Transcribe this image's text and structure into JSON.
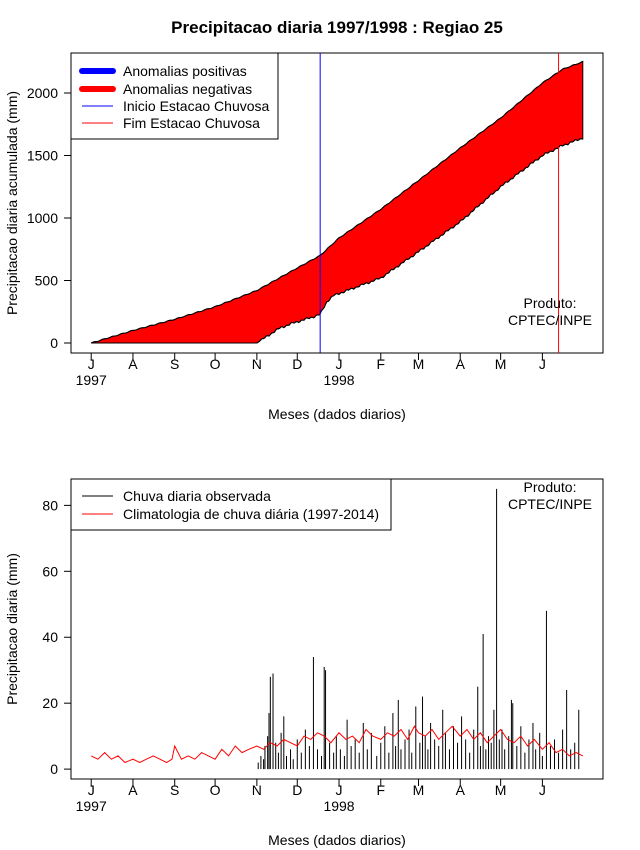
{
  "chart_data": [
    {
      "type": "area",
      "title": "Precipitacao diaria 1997/1998 : Regiao 25",
      "xlabel": "Meses (dados diarios)",
      "ylabel": "Precipitacao diaria acumulada (mm)",
      "ylim": [
        -80,
        2320
      ],
      "yticks": [
        0,
        500,
        1000,
        1500,
        2000
      ],
      "month_ticks": [
        {
          "label": "J",
          "day": 0
        },
        {
          "label": "A",
          "day": 31
        },
        {
          "label": "S",
          "day": 62
        },
        {
          "label": "O",
          "day": 92
        },
        {
          "label": "N",
          "day": 123
        },
        {
          "label": "D",
          "day": 153
        },
        {
          "label": "J",
          "day": 184
        },
        {
          "label": "F",
          "day": 215
        },
        {
          "label": "M",
          "day": 243
        },
        {
          "label": "A",
          "day": 274
        },
        {
          "label": "M",
          "day": 304
        },
        {
          "label": "J",
          "day": 335
        }
      ],
      "year_labels": [
        {
          "label": "1997",
          "day": 0
        },
        {
          "label": "1998",
          "day": 184
        }
      ],
      "xlim": [
        -15,
        380
      ],
      "inicio_day": 170,
      "fim_day": 347,
      "climatology_cumulative": {
        "days": [
          0,
          31,
          62,
          92,
          123,
          153,
          170,
          184,
          215,
          243,
          274,
          304,
          335,
          350,
          365
        ],
        "values": [
          0,
          100,
          190,
          290,
          420,
          600,
          700,
          840,
          1070,
          1300,
          1560,
          1800,
          2080,
          2190,
          2250
        ]
      },
      "observed_cumulative": {
        "days": [
          0,
          31,
          62,
          92,
          123,
          140,
          150,
          165,
          170,
          175,
          180,
          190,
          215,
          243,
          274,
          304,
          335,
          350,
          365
        ],
        "values": [
          0,
          0,
          0,
          0,
          0,
          120,
          160,
          210,
          230,
          330,
          380,
          420,
          520,
          730,
          970,
          1250,
          1500,
          1580,
          1640
        ]
      },
      "legend": [
        {
          "label": "Anomalias positivas",
          "color": "#0000ff",
          "style": "thick"
        },
        {
          "label": "Anomalias negativas",
          "color": "#ff0000",
          "style": "thick"
        },
        {
          "label": "Inicio Estacao Chuvosa",
          "color": "#0000ff",
          "style": "thin"
        },
        {
          "label": "Fim Estacao Chuvosa",
          "color": "#ff0000",
          "style": "thin"
        }
      ],
      "annotation": [
        "Produto:",
        "CPTEC/INPE"
      ],
      "colors": {
        "positive": "#0000ff",
        "negative": "#ff0000",
        "outline": "#000000"
      }
    },
    {
      "type": "bar",
      "xlabel": "Meses (dados diarios)",
      "ylabel": "Precipitacao diaria (mm)",
      "ylim": [
        -3,
        88
      ],
      "yticks": [
        0,
        20,
        40,
        60,
        80
      ],
      "xlim": [
        -15,
        380
      ],
      "month_ticks": [
        {
          "label": "J",
          "day": 0
        },
        {
          "label": "A",
          "day": 31
        },
        {
          "label": "S",
          "day": 62
        },
        {
          "label": "O",
          "day": 92
        },
        {
          "label": "N",
          "day": 123
        },
        {
          "label": "D",
          "day": 153
        },
        {
          "label": "J",
          "day": 184
        },
        {
          "label": "F",
          "day": 215
        },
        {
          "label": "M",
          "day": 243
        },
        {
          "label": "A",
          "day": 274
        },
        {
          "label": "M",
          "day": 304
        },
        {
          "label": "J",
          "day": 335
        }
      ],
      "year_labels": [
        {
          "label": "1997",
          "day": 0
        },
        {
          "label": "1998",
          "day": 184
        }
      ],
      "observed_daily": [
        {
          "day": 124,
          "value": 2
        },
        {
          "day": 126,
          "value": 4
        },
        {
          "day": 128,
          "value": 3
        },
        {
          "day": 129,
          "value": 7
        },
        {
          "day": 131,
          "value": 10
        },
        {
          "day": 132,
          "value": 17
        },
        {
          "day": 133,
          "value": 28
        },
        {
          "day": 135,
          "value": 29
        },
        {
          "day": 137,
          "value": 8
        },
        {
          "day": 139,
          "value": 5
        },
        {
          "day": 141,
          "value": 11
        },
        {
          "day": 143,
          "value": 16
        },
        {
          "day": 145,
          "value": 4
        },
        {
          "day": 148,
          "value": 6
        },
        {
          "day": 150,
          "value": 3
        },
        {
          "day": 153,
          "value": 9
        },
        {
          "day": 156,
          "value": 5
        },
        {
          "day": 159,
          "value": 12
        },
        {
          "day": 162,
          "value": 7
        },
        {
          "day": 165,
          "value": 34
        },
        {
          "day": 168,
          "value": 6
        },
        {
          "day": 171,
          "value": 4
        },
        {
          "day": 173,
          "value": 31
        },
        {
          "day": 174,
          "value": 30
        },
        {
          "day": 177,
          "value": 8
        },
        {
          "day": 180,
          "value": 5
        },
        {
          "day": 182,
          "value": 10
        },
        {
          "day": 185,
          "value": 6
        },
        {
          "day": 188,
          "value": 4
        },
        {
          "day": 190,
          "value": 15
        },
        {
          "day": 193,
          "value": 7
        },
        {
          "day": 196,
          "value": 9
        },
        {
          "day": 199,
          "value": 5
        },
        {
          "day": 202,
          "value": 14
        },
        {
          "day": 205,
          "value": 6
        },
        {
          "day": 208,
          "value": 11
        },
        {
          "day": 212,
          "value": 4
        },
        {
          "day": 215,
          "value": 8
        },
        {
          "day": 218,
          "value": 13
        },
        {
          "day": 221,
          "value": 5
        },
        {
          "day": 224,
          "value": 17
        },
        {
          "day": 226,
          "value": 7
        },
        {
          "day": 228,
          "value": 21
        },
        {
          "day": 230,
          "value": 6
        },
        {
          "day": 233,
          "value": 9
        },
        {
          "day": 236,
          "value": 12
        },
        {
          "day": 238,
          "value": 5
        },
        {
          "day": 241,
          "value": 19
        },
        {
          "day": 244,
          "value": 8
        },
        {
          "day": 246,
          "value": 22
        },
        {
          "day": 248,
          "value": 10
        },
        {
          "day": 250,
          "value": 6
        },
        {
          "day": 252,
          "value": 14
        },
        {
          "day": 255,
          "value": 9
        },
        {
          "day": 258,
          "value": 7
        },
        {
          "day": 261,
          "value": 18
        },
        {
          "day": 263,
          "value": 11
        },
        {
          "day": 266,
          "value": 6
        },
        {
          "day": 269,
          "value": 13
        },
        {
          "day": 272,
          "value": 8
        },
        {
          "day": 275,
          "value": 16
        },
        {
          "day": 278,
          "value": 9
        },
        {
          "day": 281,
          "value": 5
        },
        {
          "day": 284,
          "value": 12
        },
        {
          "day": 287,
          "value": 25
        },
        {
          "day": 289,
          "value": 7
        },
        {
          "day": 291,
          "value": 41
        },
        {
          "day": 293,
          "value": 6
        },
        {
          "day": 295,
          "value": 10
        },
        {
          "day": 297,
          "value": 8
        },
        {
          "day": 299,
          "value": 18
        },
        {
          "day": 301,
          "value": 85
        },
        {
          "day": 303,
          "value": 9
        },
        {
          "day": 305,
          "value": 12
        },
        {
          "day": 307,
          "value": 6
        },
        {
          "day": 310,
          "value": 10
        },
        {
          "day": 312,
          "value": 21
        },
        {
          "day": 313,
          "value": 20
        },
        {
          "day": 316,
          "value": 7
        },
        {
          "day": 319,
          "value": 13
        },
        {
          "day": 322,
          "value": 5
        },
        {
          "day": 325,
          "value": 9
        },
        {
          "day": 328,
          "value": 14
        },
        {
          "day": 330,
          "value": 6
        },
        {
          "day": 333,
          "value": 11
        },
        {
          "day": 335,
          "value": 4
        },
        {
          "day": 338,
          "value": 48
        },
        {
          "day": 341,
          "value": 7
        },
        {
          "day": 344,
          "value": 9
        },
        {
          "day": 347,
          "value": 5
        },
        {
          "day": 350,
          "value": 12
        },
        {
          "day": 353,
          "value": 24
        },
        {
          "day": 356,
          "value": 6
        },
        {
          "day": 359,
          "value": 8
        },
        {
          "day": 362,
          "value": 18
        }
      ],
      "climatology_daily": {
        "days": [
          0,
          5,
          10,
          15,
          20,
          25,
          31,
          36,
          41,
          46,
          51,
          56,
          60,
          62,
          67,
          72,
          77,
          82,
          87,
          92,
          97,
          102,
          107,
          112,
          117,
          123,
          128,
          133,
          138,
          143,
          148,
          153,
          158,
          163,
          168,
          173,
          178,
          184,
          189,
          194,
          199,
          204,
          209,
          215,
          220,
          225,
          230,
          235,
          240,
          243,
          248,
          253,
          258,
          263,
          268,
          274,
          279,
          284,
          289,
          294,
          299,
          304,
          309,
          314,
          319,
          324,
          329,
          335,
          340,
          345,
          350,
          355,
          360,
          365
        ],
        "values": [
          4,
          3,
          5,
          3,
          4,
          2,
          3,
          2,
          3,
          4,
          3,
          2,
          3,
          7,
          3,
          4,
          3,
          5,
          4,
          3,
          6,
          4,
          7,
          5,
          6,
          7,
          6,
          8,
          7,
          9,
          8,
          7,
          10,
          9,
          11,
          10,
          8,
          11,
          9,
          10,
          8,
          12,
          10,
          9,
          11,
          10,
          12,
          9,
          13,
          11,
          10,
          12,
          9,
          11,
          13,
          10,
          12,
          9,
          11,
          8,
          10,
          12,
          9,
          8,
          10,
          7,
          9,
          6,
          8,
          5,
          6,
          4,
          5,
          4
        ]
      },
      "legend": [
        {
          "label": "Chuva diaria observada",
          "color": "#000000"
        },
        {
          "label": "Climatologia de chuva diária (1997-2014)",
          "color": "#ff0000"
        }
      ],
      "annotation": [
        "Produto:",
        "CPTEC/INPE"
      ]
    }
  ]
}
